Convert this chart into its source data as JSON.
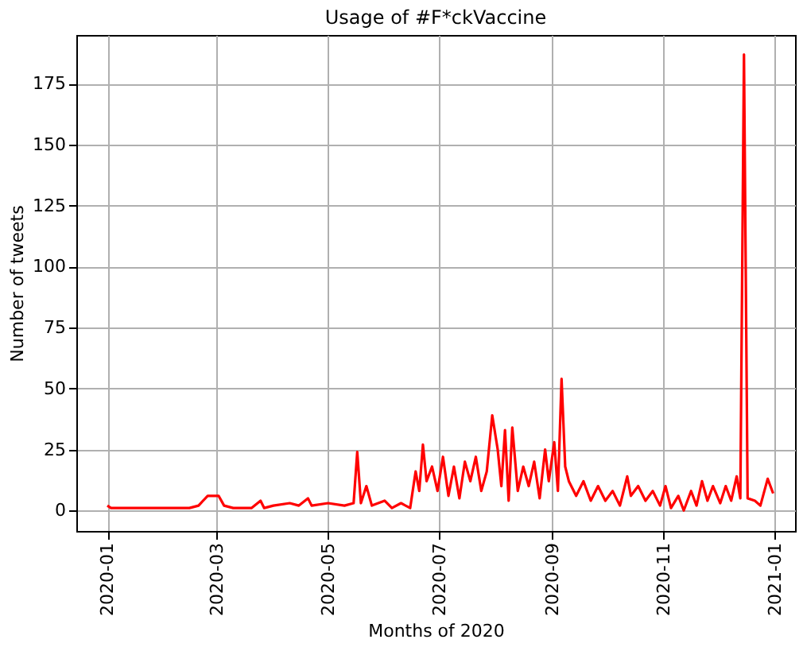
{
  "chart_data": {
    "type": "line",
    "title": "Usage of #F*ckVaccine",
    "xlabel": "Months of 2020",
    "ylabel": "Number of tweets",
    "x": [
      "2020-01-01",
      "2020-01-03",
      "2020-02-15",
      "2020-02-20",
      "2020-02-25",
      "2020-03-02",
      "2020-03-05",
      "2020-03-10",
      "2020-03-20",
      "2020-03-25",
      "2020-03-27",
      "2020-04-01",
      "2020-04-10",
      "2020-04-15",
      "2020-04-20",
      "2020-04-22",
      "2020-05-01",
      "2020-05-10",
      "2020-05-15",
      "2020-05-17",
      "2020-05-19",
      "2020-05-22",
      "2020-05-25",
      "2020-06-01",
      "2020-06-05",
      "2020-06-10",
      "2020-06-15",
      "2020-06-18",
      "2020-06-20",
      "2020-06-22",
      "2020-06-24",
      "2020-06-27",
      "2020-06-30",
      "2020-07-03",
      "2020-07-06",
      "2020-07-09",
      "2020-07-12",
      "2020-07-15",
      "2020-07-18",
      "2020-07-21",
      "2020-07-24",
      "2020-07-27",
      "2020-07-30",
      "2020-08-02",
      "2020-08-04",
      "2020-08-06",
      "2020-08-08",
      "2020-08-10",
      "2020-08-13",
      "2020-08-16",
      "2020-08-19",
      "2020-08-22",
      "2020-08-25",
      "2020-08-28",
      "2020-08-30",
      "2020-09-02",
      "2020-09-04",
      "2020-09-06",
      "2020-09-08",
      "2020-09-10",
      "2020-09-14",
      "2020-09-18",
      "2020-09-22",
      "2020-09-26",
      "2020-09-30",
      "2020-10-04",
      "2020-10-08",
      "2020-10-12",
      "2020-10-14",
      "2020-10-18",
      "2020-10-22",
      "2020-10-26",
      "2020-10-30",
      "2020-11-02",
      "2020-11-05",
      "2020-11-09",
      "2020-11-12",
      "2020-11-16",
      "2020-11-19",
      "2020-11-22",
      "2020-11-25",
      "2020-11-28",
      "2020-12-02",
      "2020-12-05",
      "2020-12-08",
      "2020-12-11",
      "2020-12-13",
      "2020-12-15",
      "2020-12-17",
      "2020-12-21",
      "2020-12-24",
      "2020-12-28",
      "2020-12-31"
    ],
    "series": [
      {
        "color": "#ff0000",
        "values": [
          2,
          1,
          1,
          2,
          6,
          6,
          2,
          1,
          1,
          4,
          1,
          2,
          3,
          2,
          5,
          2,
          3,
          2,
          3,
          24,
          3,
          10,
          2,
          4,
          1,
          3,
          1,
          16,
          8,
          27,
          12,
          18,
          8,
          22,
          6,
          18,
          5,
          20,
          12,
          22,
          8,
          16,
          39,
          25,
          10,
          33,
          4,
          34,
          8,
          18,
          10,
          20,
          5,
          25,
          12,
          28,
          8,
          54,
          18,
          12,
          6,
          12,
          4,
          10,
          4,
          8,
          2,
          14,
          6,
          10,
          4,
          8,
          2,
          10,
          1,
          6,
          0,
          8,
          2,
          12,
          4,
          10,
          3,
          10,
          4,
          14,
          5,
          187,
          5,
          4,
          2,
          13,
          7
        ]
      }
    ],
    "xlim": [
      "2019-12-15",
      "2021-01-12"
    ],
    "xticks": [
      {
        "value": "2020-01-01",
        "label": "2020-01"
      },
      {
        "value": "2020-03-01",
        "label": "2020-03"
      },
      {
        "value": "2020-05-01",
        "label": "2020-05"
      },
      {
        "value": "2020-07-01",
        "label": "2020-07"
      },
      {
        "value": "2020-09-01",
        "label": "2020-09"
      },
      {
        "value": "2020-11-01",
        "label": "2020-11"
      },
      {
        "value": "2021-01-01",
        "label": "2021-01"
      }
    ],
    "ylim": [
      -8.4,
      195
    ],
    "yticks": [
      0,
      25,
      50,
      75,
      100,
      125,
      150,
      175
    ],
    "grid": true,
    "legend": false,
    "line_style": "solid",
    "marker": "none"
  }
}
